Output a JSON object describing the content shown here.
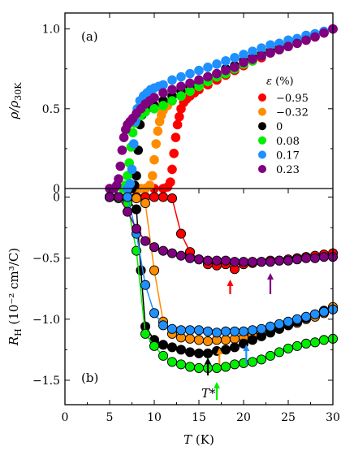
{
  "chart_data": [
    {
      "panel": "(a)",
      "type": "scatter",
      "ylabel": "ρ/ρ30K",
      "ylabel_main": "ρ/ρ",
      "ylabel_sub": "30K",
      "xlim": [
        0,
        30
      ],
      "ylim": [
        0,
        1.1
      ],
      "yticks": [
        0,
        0.5,
        1.0
      ],
      "ytick_labels": [
        "0",
        "0.5",
        "1.0"
      ],
      "legend": {
        "title": "ε (%)",
        "position": "right",
        "entries": [
          "−0.95",
          "−0.32",
          "0",
          "0.08",
          "0.17",
          "0.23"
        ]
      },
      "series": [
        {
          "name": "−0.95",
          "color": "#ff0000",
          "x": [
            9.0,
            10.0,
            11.0,
            11.5,
            11.8,
            12.0,
            12.2,
            12.4,
            12.6,
            12.8,
            13.0,
            13.3,
            13.6,
            14.0,
            14.5,
            15,
            16,
            17,
            18,
            19,
            20,
            21,
            22,
            23,
            24,
            25,
            26,
            27,
            28,
            29,
            30
          ],
          "y": [
            0,
            0,
            0,
            0.01,
            0.04,
            0.12,
            0.22,
            0.32,
            0.4,
            0.45,
            0.5,
            0.54,
            0.56,
            0.58,
            0.6,
            0.62,
            0.65,
            0.68,
            0.71,
            0.74,
            0.77,
            0.8,
            0.82,
            0.85,
            0.87,
            0.89,
            0.91,
            0.93,
            0.95,
            0.975,
            1.0
          ]
        },
        {
          "name": "−0.32",
          "color": "#ff8c00",
          "x": [
            7.5,
            8.0,
            8.5,
            9.0,
            9.5,
            9.8,
            10.0,
            10.2,
            10.4,
            10.6,
            10.8,
            11.0,
            11.5,
            12,
            13,
            14,
            15,
            16,
            17,
            18,
            19,
            20,
            21,
            22,
            23,
            24,
            25,
            26,
            27,
            28,
            29,
            30
          ],
          "y": [
            0,
            0,
            0,
            0,
            0.02,
            0.08,
            0.18,
            0.28,
            0.36,
            0.42,
            0.46,
            0.49,
            0.52,
            0.55,
            0.58,
            0.61,
            0.64,
            0.67,
            0.7,
            0.73,
            0.76,
            0.78,
            0.81,
            0.83,
            0.86,
            0.88,
            0.9,
            0.92,
            0.94,
            0.96,
            0.98,
            1.0
          ]
        },
        {
          "name": "0",
          "color": "#000000",
          "x": [
            7.5,
            7.8,
            8.0,
            8.2,
            8.4,
            8.6,
            9,
            9.5,
            10,
            11,
            12,
            13,
            14,
            15,
            16,
            17,
            18,
            19,
            20,
            21,
            22,
            23,
            24,
            25,
            26,
            27,
            28,
            29,
            30
          ],
          "y": [
            0,
            0.02,
            0.08,
            0.24,
            0.4,
            0.46,
            0.49,
            0.51,
            0.52,
            0.55,
            0.58,
            0.61,
            0.64,
            0.67,
            0.7,
            0.72,
            0.75,
            0.77,
            0.8,
            0.82,
            0.84,
            0.86,
            0.88,
            0.9,
            0.92,
            0.94,
            0.96,
            0.98,
            1.0
          ]
        },
        {
          "name": "0.08",
          "color": "#00ee00",
          "x": [
            6.5,
            6.8,
            7.0,
            7.2,
            7.4,
            7.6,
            7.8,
            8.0,
            8.5,
            9,
            10,
            11,
            12,
            13,
            14,
            15,
            16,
            17,
            18,
            19,
            20,
            21,
            22,
            23,
            24,
            25,
            26,
            27,
            28,
            29,
            30
          ],
          "y": [
            0,
            0.02,
            0.08,
            0.16,
            0.26,
            0.35,
            0.41,
            0.44,
            0.46,
            0.48,
            0.5,
            0.52,
            0.55,
            0.58,
            0.61,
            0.64,
            0.67,
            0.7,
            0.72,
            0.75,
            0.78,
            0.8,
            0.83,
            0.85,
            0.87,
            0.9,
            0.92,
            0.94,
            0.96,
            0.98,
            1.0
          ]
        },
        {
          "name": "0.17",
          "color": "#1e90ff",
          "x": [
            7.0,
            7.3,
            7.5,
            7.7,
            7.9,
            8.1,
            8.4,
            8.8,
            9.2,
            9.6,
            10,
            10.5,
            11,
            12,
            13,
            14,
            15,
            16,
            17,
            18,
            19,
            20,
            21,
            22,
            23,
            24,
            25,
            26,
            27,
            28,
            29,
            30
          ],
          "y": [
            0,
            0.03,
            0.12,
            0.28,
            0.42,
            0.5,
            0.55,
            0.58,
            0.6,
            0.62,
            0.63,
            0.64,
            0.65,
            0.68,
            0.7,
            0.72,
            0.74,
            0.76,
            0.78,
            0.8,
            0.82,
            0.84,
            0.86,
            0.88,
            0.9,
            0.91,
            0.93,
            0.94,
            0.96,
            0.97,
            0.985,
            1.0
          ]
        },
        {
          "name": "0.23",
          "color": "#800080",
          "x": [
            5.0,
            5.5,
            5.8,
            6.0,
            6.2,
            6.4,
            6.6,
            6.8,
            7.0,
            7.3,
            7.6,
            8,
            8.5,
            9,
            9.5,
            10,
            11,
            12,
            13,
            14,
            15,
            16,
            17,
            18,
            19,
            20,
            21,
            22,
            23,
            24,
            25,
            26,
            27,
            28,
            29,
            30
          ],
          "y": [
            0,
            0,
            0.02,
            0.06,
            0.14,
            0.24,
            0.32,
            0.37,
            0.4,
            0.42,
            0.44,
            0.47,
            0.5,
            0.53,
            0.55,
            0.57,
            0.6,
            0.62,
            0.64,
            0.66,
            0.68,
            0.7,
            0.72,
            0.74,
            0.76,
            0.79,
            0.81,
            0.83,
            0.85,
            0.87,
            0.89,
            0.91,
            0.93,
            0.95,
            0.975,
            1.0
          ]
        }
      ]
    },
    {
      "panel": "(b)",
      "type": "line",
      "xlabel": "T (K)",
      "xlabel_main": "T",
      "xlabel_unit": "(K)",
      "ylabel": "R_H (10^-2 cm^3/C)",
      "ylabel_main": "R",
      "ylabel_sub": "H",
      "ylabel_unit": "(10⁻² cm³/C)",
      "xlim": [
        0,
        30
      ],
      "ylim": [
        -1.7,
        0.07
      ],
      "xticks": [
        0,
        5,
        10,
        15,
        20,
        25,
        30
      ],
      "xtick_labels": [
        "0",
        "5",
        "10",
        "15",
        "20",
        "25",
        "30"
      ],
      "yticks": [
        0,
        -0.5,
        -1.0,
        -1.5
      ],
      "ytick_labels": [
        "0",
        "−0.5",
        "−1.0",
        "−1.5"
      ],
      "annotation": "T*",
      "arrows": [
        {
          "x": 18.5,
          "series": "−0.95",
          "color": "#ff0000"
        },
        {
          "x": 23.0,
          "series": "0.23",
          "color": "#800080"
        },
        {
          "x": 17.3,
          "series": "−0.32",
          "color": "#ff8c00"
        },
        {
          "x": 16.0,
          "series": "0",
          "color": "#000000"
        },
        {
          "x": 20.3,
          "series": "0.17",
          "color": "#1e90ff"
        },
        {
          "x": 17.0,
          "series": "0.08",
          "color": "#00ee00"
        }
      ],
      "series": [
        {
          "name": "−0.95",
          "color": "#ff0000",
          "x": [
            5,
            6,
            7,
            8,
            9,
            10,
            11,
            12,
            13,
            14,
            15,
            16,
            17,
            18,
            19,
            20,
            21,
            22,
            23,
            24,
            25,
            26,
            27,
            28,
            29,
            30
          ],
          "y": [
            0,
            0,
            0,
            0,
            0,
            0,
            0,
            -0.01,
            -0.3,
            -0.45,
            -0.51,
            -0.55,
            -0.56,
            -0.55,
            -0.59,
            -0.55,
            -0.54,
            -0.53,
            -0.52,
            -0.52,
            -0.51,
            -0.5,
            -0.49,
            -0.48,
            -0.47,
            -0.46
          ]
        },
        {
          "name": "−0.32",
          "color": "#ff8c00",
          "x": [
            5,
            6,
            7,
            8,
            9,
            10,
            11,
            12,
            13,
            14,
            15,
            16,
            17,
            18,
            19,
            20,
            21,
            22,
            23,
            24,
            25,
            26,
            27,
            28,
            29,
            30
          ],
          "y": [
            0,
            0,
            0,
            -0.01,
            -0.05,
            -0.6,
            -1.02,
            -1.12,
            -1.15,
            -1.16,
            -1.17,
            -1.18,
            -1.17,
            -1.17,
            -1.16,
            -1.15,
            -1.13,
            -1.11,
            -1.09,
            -1.07,
            -1.05,
            -1.03,
            -1.0,
            -0.98,
            -0.95,
            -0.9
          ]
        },
        {
          "name": "0",
          "color": "#000000",
          "x": [
            5,
            6,
            7,
            8,
            8.5,
            9,
            10,
            11,
            12,
            13,
            14,
            15,
            16,
            17,
            18,
            19,
            20,
            21,
            22,
            23,
            24,
            25,
            26,
            27,
            28,
            29,
            30
          ],
          "y": [
            0,
            0,
            -0.02,
            -0.1,
            -0.6,
            -1.06,
            -1.17,
            -1.21,
            -1.23,
            -1.25,
            -1.27,
            -1.28,
            -1.28,
            -1.26,
            -1.25,
            -1.23,
            -1.2,
            -1.17,
            -1.14,
            -1.11,
            -1.08,
            -1.05,
            -1.02,
            -0.99,
            -0.96,
            -0.93,
            -0.92
          ]
        },
        {
          "name": "0.08",
          "color": "#00ee00",
          "x": [
            5,
            6,
            7,
            8,
            9,
            10,
            11,
            12,
            13,
            14,
            15,
            16,
            17,
            18,
            19,
            20,
            21,
            22,
            23,
            24,
            25,
            26,
            27,
            28,
            29,
            30
          ],
          "y": [
            0,
            -0.01,
            -0.05,
            -0.44,
            -1.12,
            -1.22,
            -1.3,
            -1.35,
            -1.37,
            -1.39,
            -1.4,
            -1.4,
            -1.4,
            -1.39,
            -1.37,
            -1.36,
            -1.35,
            -1.33,
            -1.3,
            -1.27,
            -1.24,
            -1.22,
            -1.2,
            -1.19,
            -1.17,
            -1.16
          ]
        },
        {
          "name": "0.17",
          "color": "#1e90ff",
          "x": [
            5,
            6,
            7,
            8,
            9,
            10,
            11,
            12,
            13,
            14,
            15,
            16,
            17,
            18,
            19,
            20,
            21,
            22,
            23,
            24,
            25,
            26,
            27,
            28,
            29,
            30
          ],
          "y": [
            0,
            0,
            0,
            -0.3,
            -0.72,
            -0.95,
            -1.05,
            -1.08,
            -1.09,
            -1.09,
            -1.09,
            -1.1,
            -1.11,
            -1.1,
            -1.1,
            -1.1,
            -1.09,
            -1.08,
            -1.06,
            -1.04,
            -1.02,
            -1.0,
            -0.98,
            -0.96,
            -0.94,
            -0.92
          ]
        },
        {
          "name": "0.23",
          "color": "#800080",
          "x": [
            5,
            6,
            7,
            8,
            9,
            10,
            11,
            12,
            13,
            14,
            15,
            16,
            17,
            18,
            19,
            20,
            21,
            22,
            23,
            24,
            25,
            26,
            27,
            28,
            29,
            30
          ],
          "y": [
            0,
            0,
            -0.12,
            -0.26,
            -0.36,
            -0.41,
            -0.44,
            -0.46,
            -0.48,
            -0.5,
            -0.51,
            -0.52,
            -0.52,
            -0.52,
            -0.53,
            -0.53,
            -0.53,
            -0.53,
            -0.53,
            -0.52,
            -0.52,
            -0.51,
            -0.5,
            -0.5,
            -0.49,
            -0.49
          ]
        }
      ]
    }
  ]
}
